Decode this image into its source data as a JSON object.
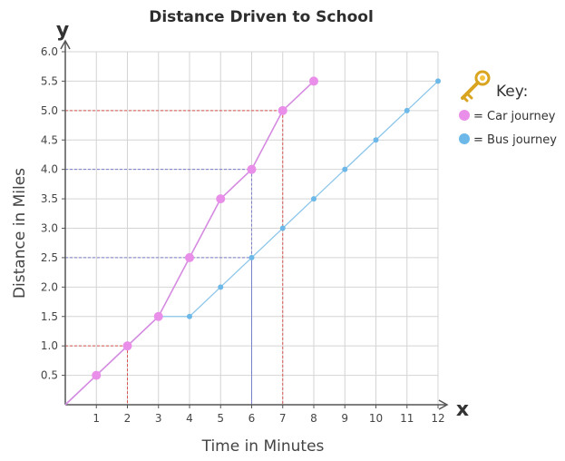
{
  "chart_data": {
    "type": "line",
    "title": "Distance Driven to School",
    "x_axis_letter": "x",
    "y_axis_letter": "y",
    "xlabel": "Time in Minutes",
    "ylabel": "Distance in Miles",
    "xlim": [
      0,
      12
    ],
    "ylim": [
      0,
      6.0
    ],
    "x_ticks": [
      "1",
      "2",
      "3",
      "4",
      "5",
      "6",
      "7",
      "8",
      "9",
      "10",
      "11",
      "12"
    ],
    "y_ticks": [
      "0.5",
      "1.0",
      "1.5",
      "2.0",
      "2.5",
      "3.0",
      "3.5",
      "4.0",
      "4.5",
      "5.0",
      "5.5",
      "6.0"
    ],
    "grid": true,
    "legend": {
      "title": "Key:",
      "placement": "top-right",
      "entries": [
        {
          "label": "= Car journey",
          "color": "#e98ee9"
        },
        {
          "label": "= Bus journey",
          "color": "#6cb8e8"
        }
      ]
    },
    "series": [
      {
        "legend_entry": 0,
        "color": "#e98ee9",
        "line_color": "#d58be0",
        "x": [
          0,
          1,
          2,
          3,
          4,
          5,
          6,
          7,
          8
        ],
        "y": [
          0,
          0.5,
          1.0,
          1.5,
          2.5,
          3.5,
          4.0,
          5.0,
          5.5
        ]
      },
      {
        "legend_entry": 1,
        "color": "#6cb8e8",
        "line_color": "#8cc6ea",
        "x": [
          0,
          1,
          2,
          3,
          4,
          5,
          6,
          7,
          8,
          9,
          10,
          11,
          12
        ],
        "y": [
          0,
          0.5,
          1.0,
          1.5,
          1.5,
          2.0,
          2.5,
          3.0,
          3.5,
          4.0,
          4.5,
          5.0,
          5.5
        ]
      }
    ],
    "reference_lines": [
      {
        "x": 2,
        "y": 1.0,
        "color": "#d9534f"
      },
      {
        "x": 7,
        "y": 5.0,
        "color": "#d9534f"
      },
      {
        "x": 6,
        "y": 4.0,
        "color": "#7a7fc9"
      },
      {
        "x": 6,
        "y": 2.5,
        "color": "#7a7fc9"
      }
    ],
    "key_icon": "key-icon"
  }
}
